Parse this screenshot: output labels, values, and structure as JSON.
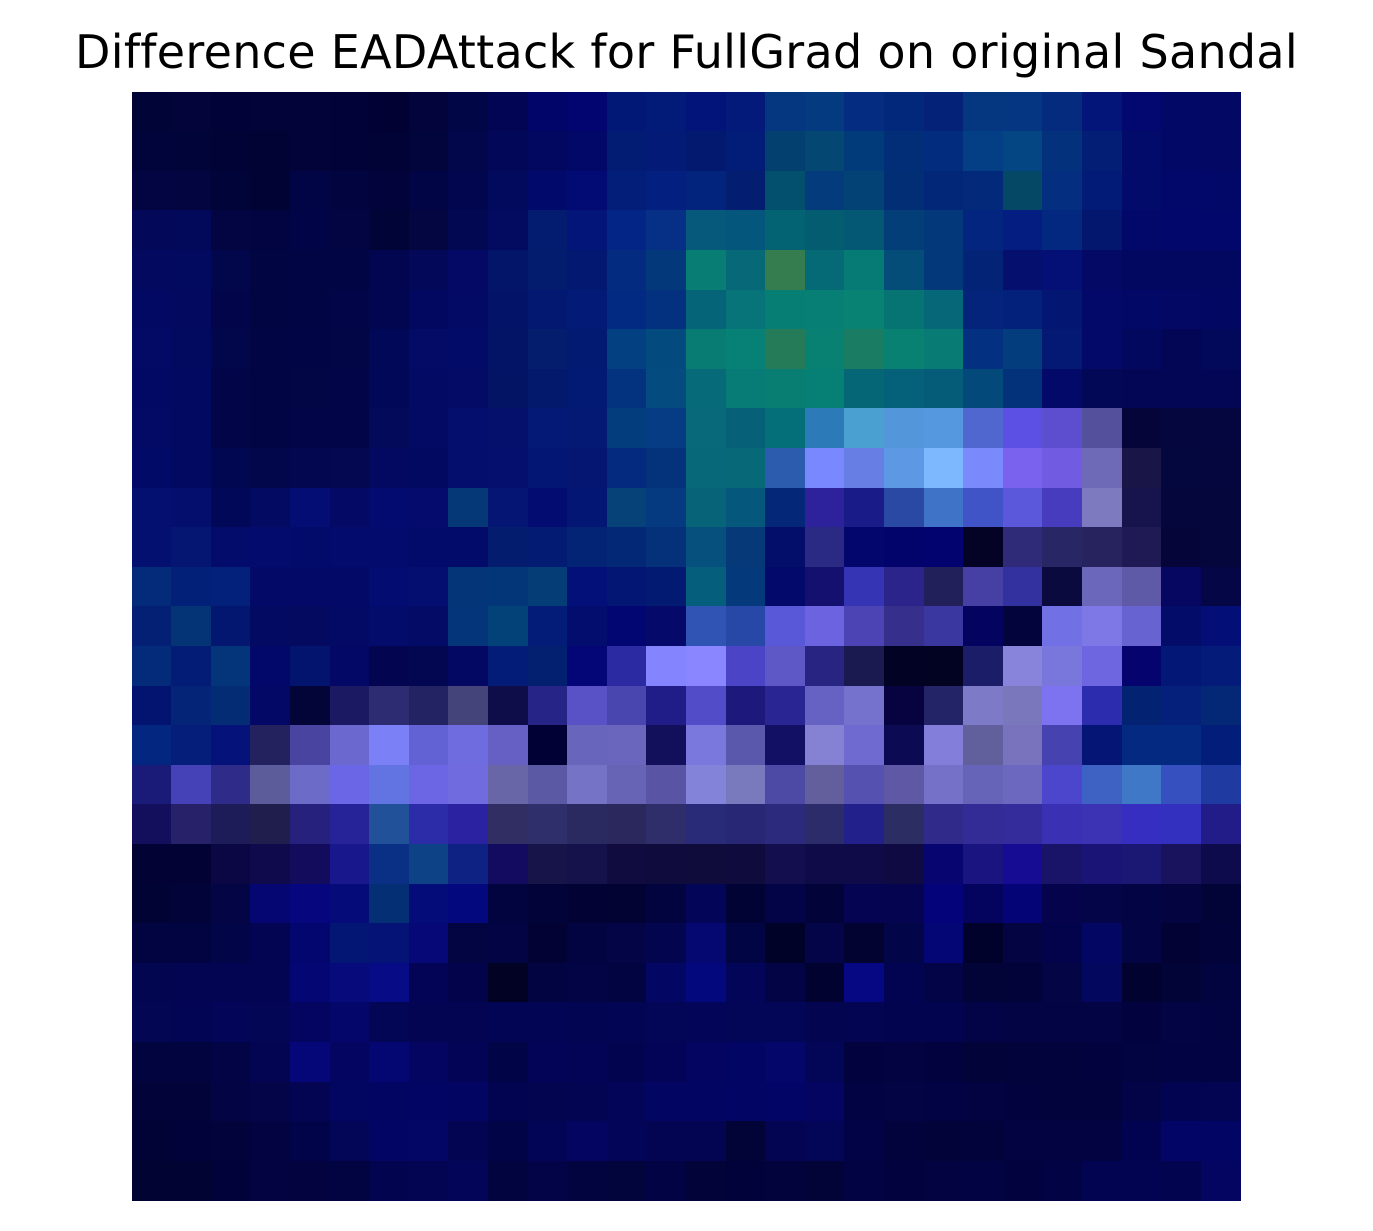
{
  "chart_data": {
    "type": "heatmap",
    "title": "Difference EADAttack for FullGrad on original Sandal",
    "xlabel": "",
    "ylabel": "",
    "axes_visible": false,
    "rows": 28,
    "cols": 28,
    "colors_rgb": {
      "description_hidden": true,
      "rows": [
        [
          "#010436",
          "#02043a",
          "#010338",
          "#020339",
          "#020338",
          "#010237",
          "#010233",
          "#02043b",
          "#010646",
          "#020553",
          "#01056a",
          "#020570",
          "#011877",
          "#031b78",
          "#02147a",
          "#031a7b",
          "#053680",
          "#033a80",
          "#042c80",
          "#02287c",
          "#032278",
          "#053780",
          "#053682",
          "#042b7d",
          "#031578",
          "#020870",
          "#020866",
          "#020863"
        ],
        [
          "#01043a",
          "#010439",
          "#010336",
          "#010335",
          "#010339",
          "#010338",
          "#010235",
          "#02043c",
          "#02064a",
          "#020757",
          "#020760",
          "#020868",
          "#021c74",
          "#031b76",
          "#02196f",
          "#021d78",
          "#04406f",
          "#034772",
          "#023b7a",
          "#022e77",
          "#022d7e",
          "#043e84",
          "#044584",
          "#03317c",
          "#021e75",
          "#020b6a",
          "#020865",
          "#020864"
        ],
        [
          "#020542",
          "#02053f",
          "#010439",
          "#010335",
          "#020545",
          "#020440",
          "#01033a",
          "#010546",
          "#02064e",
          "#020a5e",
          "#01096a",
          "#020a73",
          "#031e78",
          "#032080",
          "#03247c",
          "#031d70",
          "#02506e",
          "#043b7c",
          "#034274",
          "#022e76",
          "#022779",
          "#032a7a",
          "#044866",
          "#042f80",
          "#021b77",
          "#020a6a",
          "#020869",
          "#020867"
        ],
        [
          "#030859",
          "#03095a",
          "#020542",
          "#010440",
          "#010547",
          "#020542",
          "#010436",
          "#030641",
          "#020851",
          "#020b60",
          "#041c70",
          "#031579",
          "#032686",
          "#053086",
          "#06597a",
          "#05567c",
          "#046372",
          "#035c70",
          "#045873",
          "#033e79",
          "#03397a",
          "#03247f",
          "#031d80",
          "#03287f",
          "#03176e",
          "#02086a",
          "#02086b",
          "#02086b"
        ],
        [
          "#02095e",
          "#020a5f",
          "#02064a",
          "#010541",
          "#010544",
          "#020544",
          "#020650",
          "#030858",
          "#030964",
          "#031568",
          "#031c6e",
          "#031870",
          "#032c80",
          "#03387b",
          "#087d74",
          "#076877",
          "#357d4f",
          "#056a76",
          "#067a74",
          "#044d78",
          "#03397b",
          "#032476",
          "#040f6e",
          "#041076",
          "#030965",
          "#02085f",
          "#020860",
          "#02085f"
        ],
        [
          "#020963",
          "#02095e",
          "#020549",
          "#010542",
          "#020544",
          "#020548",
          "#020550",
          "#020860",
          "#030a66",
          "#031468",
          "#031870",
          "#031a76",
          "#032a82",
          "#043080",
          "#066479",
          "#067478",
          "#077e74",
          "#087f74",
          "#088272",
          "#077474",
          "#066778",
          "#04237a",
          "#03207b",
          "#031672",
          "#020969",
          "#020866",
          "#020863",
          "#020862"
        ],
        [
          "#020a65",
          "#020a5f",
          "#02064b",
          "#010544",
          "#020545",
          "#020546",
          "#020858",
          "#030b66",
          "#030b69",
          "#031366",
          "#041d6d",
          "#031a72",
          "#034082",
          "#034b7e",
          "#087c72",
          "#078076",
          "#257b58",
          "#088172",
          "#1a7c62",
          "#088072",
          "#087b74",
          "#033081",
          "#033d7d",
          "#031974",
          "#020968",
          "#02085d",
          "#020655",
          "#02085a"
        ],
        [
          "#020965",
          "#020960",
          "#020649",
          "#010543",
          "#020644",
          "#020648",
          "#020858",
          "#030a63",
          "#030b67",
          "#031465",
          "#031a6c",
          "#031a74",
          "#03337f",
          "#044b80",
          "#066a79",
          "#077c76",
          "#087e72",
          "#068074",
          "#056676",
          "#05607a",
          "#055c78",
          "#034a7b",
          "#03327b",
          "#030968",
          "#020756",
          "#020655",
          "#020654",
          "#020654"
        ],
        [
          "#020a66",
          "#020960",
          "#020548",
          "#010544",
          "#020547",
          "#020649",
          "#030a5a",
          "#030a63",
          "#040e6c",
          "#04106c",
          "#041876",
          "#041974",
          "#043d7e",
          "#053c83",
          "#07697a",
          "#066078",
          "#046e79",
          "#2c7ab8",
          "#4aa0d0",
          "#5496da",
          "#5698df",
          "#5067cf",
          "#5c4fe4",
          "#5d4ed0",
          "#55509c",
          "#06053a",
          "#05063d",
          "#05053f"
        ],
        [
          "#020a67",
          "#020961",
          "#020751",
          "#02064b",
          "#02074f",
          "#030850",
          "#030860",
          "#020961",
          "#040e6c",
          "#040f6e",
          "#041674",
          "#041672",
          "#032a7e",
          "#05337b",
          "#066878",
          "#076878",
          "#2b5cae",
          "#7a88ff",
          "#677ee4",
          "#5c98e4",
          "#7db8ff",
          "#7a89fb",
          "#7a62ee",
          "#715be1",
          "#6e6ab8",
          "#191547",
          "#04073e",
          "#05063e"
        ],
        [
          "#031070",
          "#030e6d",
          "#020858",
          "#020a62",
          "#030d73",
          "#030964",
          "#040b70",
          "#040b6c",
          "#043876",
          "#041574",
          "#030c70",
          "#041674",
          "#064278",
          "#053a80",
          "#066378",
          "#05587c",
          "#042777",
          "#2e229c",
          "#191c88",
          "#2949a4",
          "#3f73c8",
          "#4054c8",
          "#5b58db",
          "#473bbe",
          "#7e7ac0",
          "#16134d",
          "#05063c",
          "#05063b"
        ],
        [
          "#031070",
          "#041572",
          "#030c6a",
          "#030c6c",
          "#030b6a",
          "#030b6c",
          "#030b6c",
          "#030b6a",
          "#030b6a",
          "#031c6e",
          "#031b72",
          "#032374",
          "#032976",
          "#05307a",
          "#06507e",
          "#063978",
          "#030e6a",
          "#2a2a84",
          "#03066c",
          "#03036c",
          "#030370",
          "#040326",
          "#302b78",
          "#292666",
          "#26235e",
          "#1f1a54",
          "#060539",
          "#05063b"
        ],
        [
          "#042a7a",
          "#032079",
          "#03217b",
          "#020966",
          "#030966",
          "#030966",
          "#030c70",
          "#040d70",
          "#043578",
          "#033678",
          "#053e76",
          "#04107a",
          "#031674",
          "#031a73",
          "#055f7c",
          "#04397c",
          "#03096a",
          "#141070",
          "#3434b4",
          "#2b248a",
          "#22205a",
          "#4640a4",
          "#3330a0",
          "#0b0a3f",
          "#6b68bc",
          "#5f5aa8",
          "#050760",
          "#050645"
        ],
        [
          "#032074",
          "#043476",
          "#031670",
          "#020a62",
          "#030a60",
          "#030a66",
          "#030c6a",
          "#030b66",
          "#04347a",
          "#034278",
          "#031c78",
          "#020d6e",
          "#020672",
          "#04096a",
          "#3054b4",
          "#2848a8",
          "#5958d8",
          "#6b63e0",
          "#4c44b4",
          "#36308c",
          "#3a38a0",
          "#040460",
          "#04043c",
          "#7170e4",
          "#7d78e6",
          "#6764d2",
          "#040c6a",
          "#030e76"
        ],
        [
          "#042a7a",
          "#031c76",
          "#04357a",
          "#02086a",
          "#03146e",
          "#030866",
          "#030551",
          "#030650",
          "#030862",
          "#031c77",
          "#031f70",
          "#040576",
          "#2c2aa2",
          "#8584ff",
          "#8a86ff",
          "#4b44c6",
          "#5d58c6",
          "#282482",
          "#1b1a50",
          "#020224",
          "#020223",
          "#1c1d68",
          "#8884dc",
          "#7977dc",
          "#6e66e0",
          "#05036e",
          "#031776",
          "#041b7a"
        ],
        [
          "#031370",
          "#042478",
          "#042c75",
          "#030866",
          "#030538",
          "#1a1961",
          "#2d2b72",
          "#232262",
          "#44437a",
          "#0f0c4a",
          "#262486",
          "#5852c6",
          "#4a46b0",
          "#201c88",
          "#534cc8",
          "#1c187c",
          "#292694",
          "#6562c4",
          "#7572ce",
          "#070340",
          "#232468",
          "#7d7ac8",
          "#7a77bc",
          "#7d72f0",
          "#2c2cae",
          "#032372",
          "#04207a",
          "#042876"
        ],
        [
          "#032780",
          "#041e7a",
          "#04127a",
          "#23225e",
          "#48449f",
          "#6b69cf",
          "#7b80f6",
          "#6362d4",
          "#6e6cde",
          "#6760c4",
          "#020135",
          "#6865bd",
          "#6b66bd",
          "#12105a",
          "#7a78dd",
          "#5958ad",
          "#121064",
          "#8582d4",
          "#6f6ad0",
          "#0c0a53",
          "#837ed9",
          "#61609d",
          "#7873bc",
          "#4643b0",
          "#041576",
          "#042980",
          "#032980",
          "#031d7a"
        ],
        [
          "#1a1a78",
          "#4542b7",
          "#2e2b89",
          "#5d5c9b",
          "#6c6bc7",
          "#6a66e6",
          "#6174e2",
          "#6c66e4",
          "#706ce0",
          "#6966a8",
          "#5b58a4",
          "#7573c6",
          "#6763b5",
          "#5955a4",
          "#8483da",
          "#7979be",
          "#4c4aa4",
          "#625f9c",
          "#5451b0",
          "#5f58a5",
          "#7671c8",
          "#6564b8",
          "#6c68bf",
          "#4c46cc",
          "#3d62c4",
          "#3f78c6",
          "#3650c0",
          "#1f3aa0"
        ],
        [
          "#130f5c",
          "#262168",
          "#1e1c58",
          "#201e4c",
          "#25217c",
          "#262298",
          "#215198",
          "#2c2ca8",
          "#2a22a0",
          "#302e62",
          "#2f2f6c",
          "#2a2960",
          "#2a285c",
          "#302e6a",
          "#292a78",
          "#272776",
          "#2b2a7c",
          "#2d2c6a",
          "#22208a",
          "#2c2d62",
          "#302a8a",
          "#342c96",
          "#332c9a",
          "#3930b4",
          "#3c32b4",
          "#352ec0",
          "#3330c0",
          "#221c88"
        ],
        [
          "#020234",
          "#020234",
          "#0a0744",
          "#0e0a4c",
          "#130b5c",
          "#18188c",
          "#0a3086",
          "#0e4287",
          "#0e2283",
          "#120b60",
          "#17144a",
          "#15114a",
          "#100c3f",
          "#0f0c3d",
          "#0f0b3b",
          "#0f0b3d",
          "#130f4e",
          "#0f0b48",
          "#0f0b48",
          "#0f0b42",
          "#070670",
          "#1a1480",
          "#160c94",
          "#1a1468",
          "#1a1476",
          "#1b1873",
          "#18135c",
          "#0d0b4c"
        ],
        [
          "#020335",
          "#020339",
          "#030545",
          "#050671",
          "#06067f",
          "#060b7a",
          "#042f74",
          "#040c79",
          "#04087f",
          "#020440",
          "#020338",
          "#020234",
          "#020332",
          "#020440",
          "#030558",
          "#020335",
          "#030447",
          "#020338",
          "#050452",
          "#040450",
          "#04037a",
          "#04035e",
          "#050477",
          "#04034b",
          "#040449",
          "#030443",
          "#030440",
          "#020336"
        ],
        [
          "#020441",
          "#020441",
          "#020547",
          "#030553",
          "#040670",
          "#041674",
          "#051377",
          "#050876",
          "#030543",
          "#020444",
          "#020235",
          "#020441",
          "#030547",
          "#03054f",
          "#040870",
          "#020544",
          "#010228",
          "#030548",
          "#020330",
          "#020547",
          "#040676",
          "#01022c",
          "#030441",
          "#02034a",
          "#040664",
          "#030443",
          "#020234",
          "#020339"
        ],
        [
          "#020550",
          "#030552",
          "#030552",
          "#030553",
          "#040674",
          "#060a7a",
          "#070b86",
          "#030456",
          "#02034a",
          "#020225",
          "#020442",
          "#020446",
          "#020442",
          "#030763",
          "#03097c",
          "#030558",
          "#020446",
          "#020230",
          "#050882",
          "#030451",
          "#020447",
          "#020337",
          "#020339",
          "#030545",
          "#03075e",
          "#020230",
          "#020337",
          "#020440"
        ],
        [
          "#030652",
          "#020553",
          "#030658",
          "#030654",
          "#030560",
          "#04066a",
          "#030555",
          "#030553",
          "#030552",
          "#020553",
          "#020553",
          "#020552",
          "#020553",
          "#030556",
          "#030559",
          "#030556",
          "#030556",
          "#030551",
          "#030553",
          "#030450",
          "#03044f",
          "#020447",
          "#020444",
          "#020443",
          "#020444",
          "#02033e",
          "#020443",
          "#020442"
        ],
        [
          "#02043f",
          "#020440",
          "#020446",
          "#030552",
          "#050779",
          "#030560",
          "#040672",
          "#030560",
          "#030456",
          "#020448",
          "#030457",
          "#030456",
          "#020450",
          "#030458",
          "#030561",
          "#030564",
          "#040669",
          "#030556",
          "#02033e",
          "#020340",
          "#02033e",
          "#020339",
          "#02033a",
          "#02033d",
          "#02033e",
          "#020341",
          "#020342",
          "#020342"
        ],
        [
          "#020439",
          "#020339",
          "#020443",
          "#030548",
          "#030553",
          "#030661",
          "#030563",
          "#030565",
          "#030562",
          "#020451",
          "#030551",
          "#030552",
          "#030558",
          "#030562",
          "#030563",
          "#030564",
          "#030566",
          "#030561",
          "#020343",
          "#020443",
          "#020345",
          "#020340",
          "#02033e",
          "#02033d",
          "#02033d",
          "#020447",
          "#020452",
          "#030552"
        ],
        [
          "#010235",
          "#02023a",
          "#02033a",
          "#020340",
          "#020449",
          "#030557",
          "#030564",
          "#030664",
          "#030552",
          "#020448",
          "#020456",
          "#030560",
          "#030558",
          "#030553",
          "#030553",
          "#020337",
          "#030552",
          "#030557",
          "#020346",
          "#02033c",
          "#020339",
          "#02033b",
          "#020340",
          "#020340",
          "#020340",
          "#020350",
          "#030566",
          "#030564"
        ],
        [
          "#010333",
          "#010333",
          "#01023a",
          "#020340",
          "#02033f",
          "#020341",
          "#030450",
          "#030452",
          "#030558",
          "#02043f",
          "#020447",
          "#02043f",
          "#02043c",
          "#020344",
          "#020339",
          "#02023a",
          "#02033c",
          "#020337",
          "#020342",
          "#02033e",
          "#020340",
          "#020342",
          "#02033e",
          "#020344",
          "#020451",
          "#030451",
          "#030450",
          "#030561"
        ]
      ]
    }
  }
}
